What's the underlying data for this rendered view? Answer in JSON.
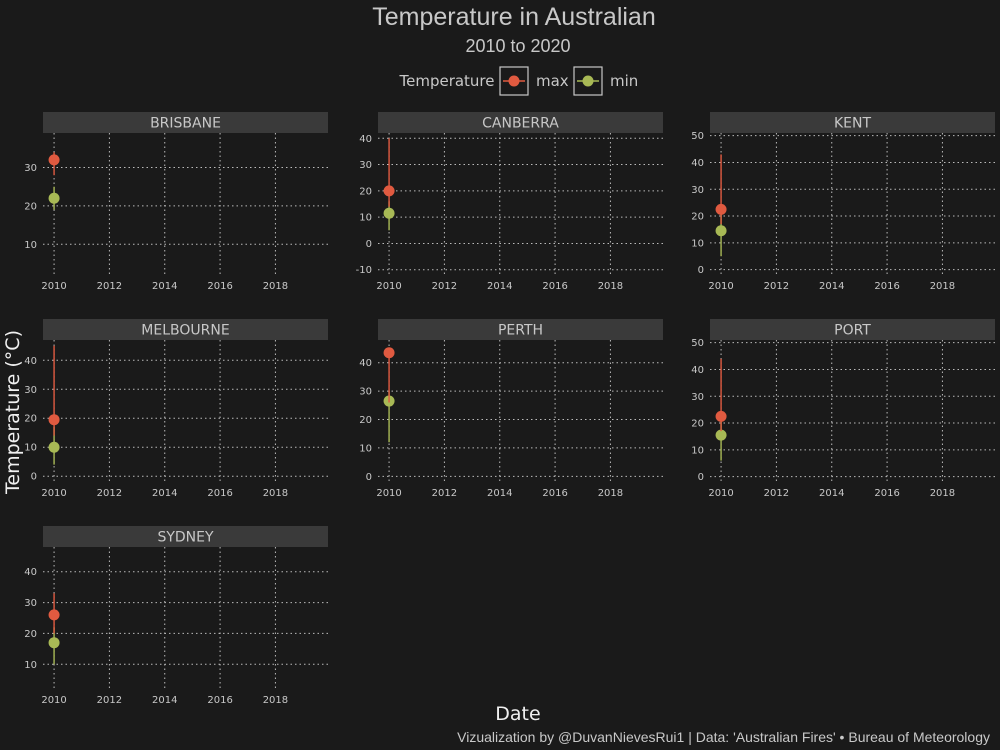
{
  "chart_data": {
    "type": "line",
    "title": "Temperature in Australian",
    "subtitle": "2010 to 2020",
    "xlabel": "Date",
    "ylabel": "Temperature (°C)",
    "caption": "Vizualization by @DuvanNievesRui1 | Data: 'Australian Fires' • Bureau of Meteorology",
    "legend": {
      "title": "Temperature",
      "position": "top",
      "entries": [
        {
          "name": "max",
          "color": "#e05a40"
        },
        {
          "name": "min",
          "color": "#a8b955"
        }
      ]
    },
    "x_ticks": [
      2010,
      2012,
      2014,
      2016,
      2018
    ],
    "xlim": [
      2009.6,
      2019.9
    ],
    "grid": true,
    "facets": [
      {
        "name": "BRISBANE",
        "ylim": [
          2,
          39
        ],
        "y_ticks": [
          10,
          20,
          30
        ],
        "max": {
          "x": 2010,
          "point": 32,
          "low": 28,
          "high": 34
        },
        "min": {
          "x": 2010,
          "point": 22,
          "low": 19,
          "high": 25
        }
      },
      {
        "name": "CANBERRA",
        "ylim": [
          -12,
          42
        ],
        "y_ticks": [
          -10,
          0,
          10,
          20,
          30,
          40
        ],
        "max": {
          "x": 2010,
          "point": 20,
          "low": 14,
          "high": 40
        },
        "min": {
          "x": 2010,
          "point": 11.5,
          "low": 5,
          "high": 16
        }
      },
      {
        "name": "KENT",
        "ylim": [
          -2,
          51
        ],
        "y_ticks": [
          0,
          10,
          20,
          30,
          40,
          50
        ],
        "max": {
          "x": 2010,
          "point": 22.5,
          "low": 17,
          "high": 43
        },
        "min": {
          "x": 2010,
          "point": 14.5,
          "low": 5,
          "high": 22
        }
      },
      {
        "name": "MELBOURNE",
        "ylim": [
          -2,
          47
        ],
        "y_ticks": [
          0,
          10,
          20,
          30,
          40
        ],
        "max": {
          "x": 2010,
          "point": 19.5,
          "low": 14,
          "high": 45
        },
        "min": {
          "x": 2010,
          "point": 10,
          "low": 4,
          "high": 17
        }
      },
      {
        "name": "PERTH",
        "ylim": [
          -2,
          48
        ],
        "y_ticks": [
          0,
          10,
          20,
          30,
          40
        ],
        "max": {
          "x": 2010,
          "point": 43.5,
          "low": 26,
          "high": 45
        },
        "min": {
          "x": 2010,
          "point": 26.5,
          "low": 12,
          "high": 30
        }
      },
      {
        "name": "PORT",
        "ylim": [
          -2,
          51
        ],
        "y_ticks": [
          0,
          10,
          20,
          30,
          40,
          50
        ],
        "max": {
          "x": 2010,
          "point": 22.5,
          "low": 17,
          "high": 44
        },
        "min": {
          "x": 2010,
          "point": 15.5,
          "low": 6,
          "high": 22
        }
      },
      {
        "name": "SYDNEY",
        "ylim": [
          2,
          48
        ],
        "y_ticks": [
          10,
          20,
          30,
          40
        ],
        "max": {
          "x": 2010,
          "point": 26,
          "low": 20,
          "high": 33
        },
        "min": {
          "x": 2010,
          "point": 17,
          "low": 10,
          "high": 22
        }
      }
    ]
  }
}
